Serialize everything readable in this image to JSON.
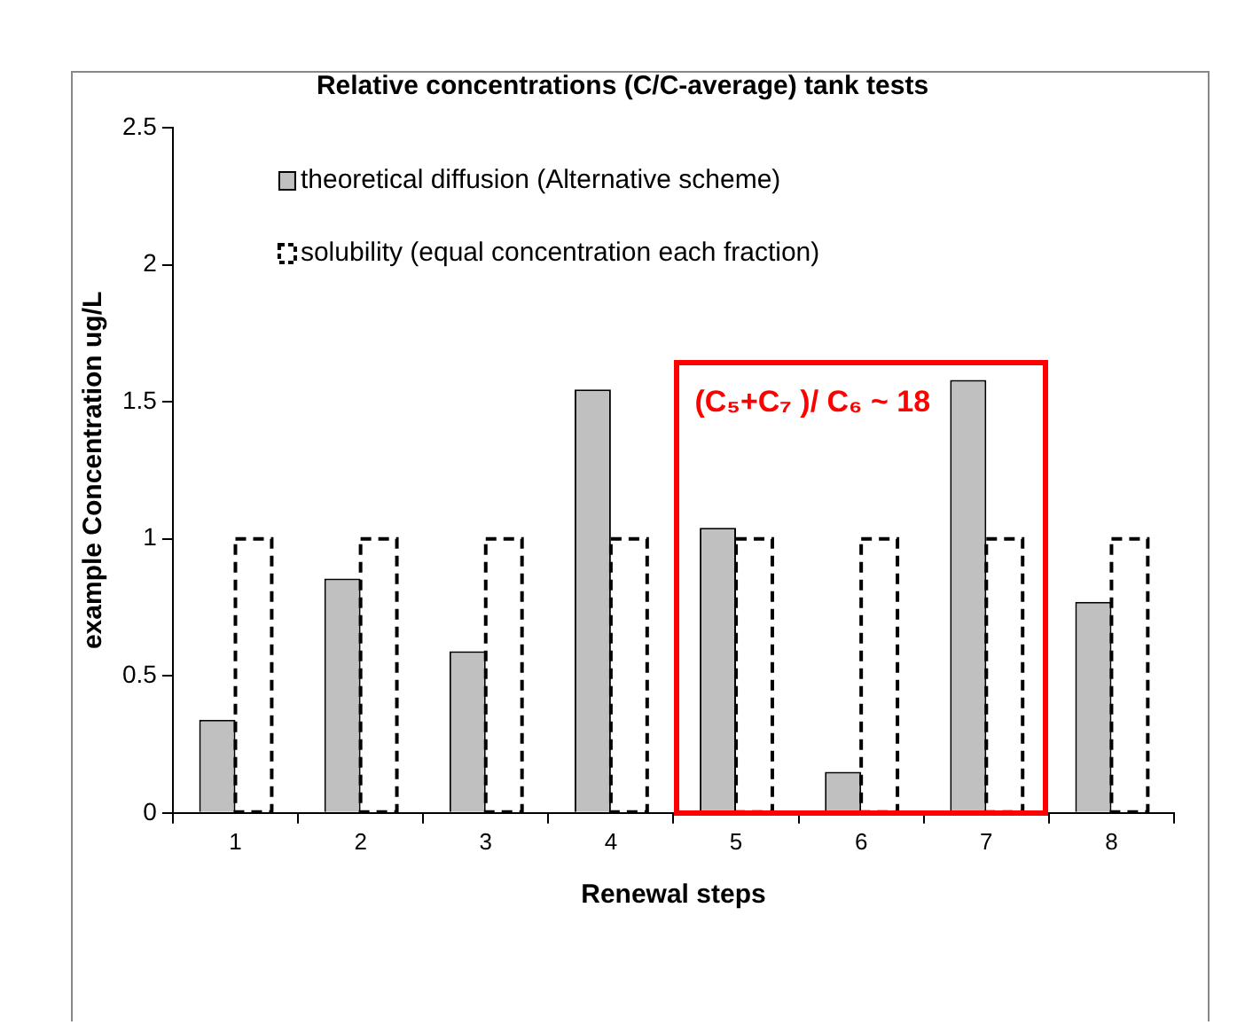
{
  "chart_data": {
    "type": "bar",
    "title": "Relative concentrations (C/C-average) tank tests",
    "xlabel": "Renewal steps",
    "ylabel": "example Concentration ug/L",
    "categories": [
      "1",
      "2",
      "3",
      "4",
      "5",
      "6",
      "7",
      "8"
    ],
    "series": [
      {
        "name": "theoretical diffusion (Alternative scheme)",
        "color": "#c0c0c0",
        "values": [
          0.34,
          0.855,
          0.59,
          1.545,
          1.04,
          0.15,
          1.58,
          0.77
        ]
      },
      {
        "name": "solubility (equal concentration each fraction)",
        "color": "#000000",
        "line_style": "dashed",
        "values": [
          1,
          1,
          1,
          1,
          1,
          1,
          1,
          1
        ]
      }
    ],
    "ylim": [
      0,
      2.5
    ],
    "yticks": [
      0,
      0.5,
      1,
      1.5,
      2,
      2.5
    ],
    "grid": false,
    "legend": "top left",
    "annotations": [
      "(C₅+C₇ )/ C₆ ~ 18"
    ]
  }
}
